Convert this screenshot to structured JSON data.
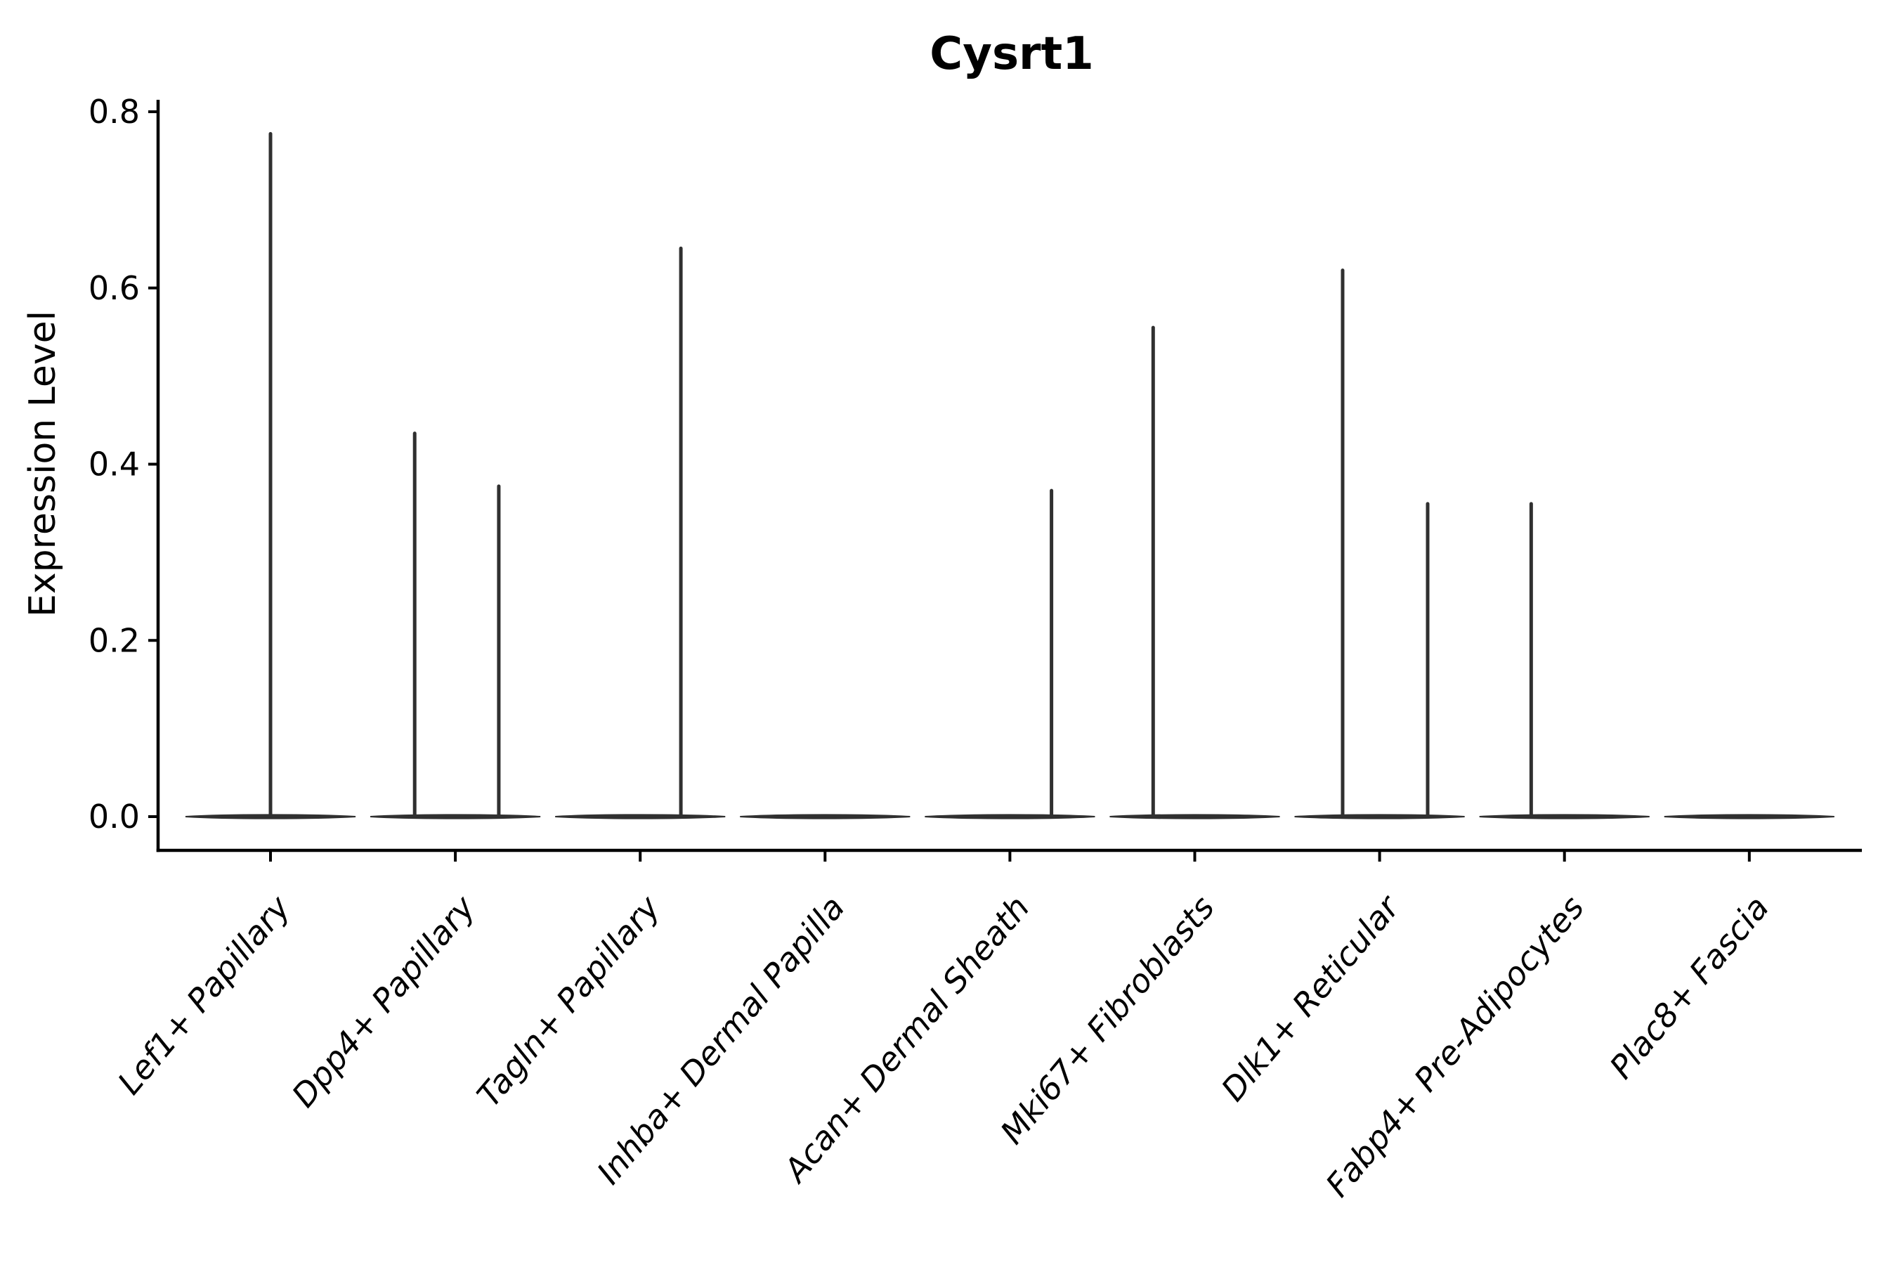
{
  "chart_data": {
    "type": "violin",
    "title": "Cysrt1",
    "ylabel": "Expression Level",
    "xlabel": "",
    "ylim": [
      0.0,
      0.8
    ],
    "yticks": [
      {
        "value": 0.0,
        "label": "0.0"
      },
      {
        "value": 0.2,
        "label": "0.2"
      },
      {
        "value": 0.4,
        "label": "0.4"
      },
      {
        "value": 0.6,
        "label": "0.6"
      },
      {
        "value": 0.8,
        "label": "0.8"
      }
    ],
    "categories": [
      "Lef1+ Papillary",
      "Dpp4+ Papillary",
      "Tagln+ Papillary",
      "Inhba+ Dermal Papilla",
      "Acan+ Dermal Sheath",
      "Mki67+ Fibroblasts",
      "Dlk1+ Reticular",
      "Fabp4+ Pre-Adipocytes",
      "Plac8+ Fascia"
    ],
    "violins": [
      {
        "category": "Lef1+ Papillary",
        "baseline_value": 0.0,
        "spikes": [
          {
            "offset_frac": 0.0,
            "max": 0.775
          }
        ]
      },
      {
        "category": "Dpp4+ Papillary",
        "baseline_value": 0.0,
        "spikes": [
          {
            "offset_frac": -0.22,
            "max": 0.435
          },
          {
            "offset_frac": 0.235,
            "max": 0.375
          }
        ]
      },
      {
        "category": "Tagln+ Papillary",
        "baseline_value": 0.0,
        "spikes": [
          {
            "offset_frac": 0.22,
            "max": 0.645
          }
        ]
      },
      {
        "category": "Inhba+ Dermal Papilla",
        "baseline_value": 0.0,
        "spikes": []
      },
      {
        "category": "Acan+ Dermal Sheath",
        "baseline_value": 0.0,
        "spikes": [
          {
            "offset_frac": 0.225,
            "max": 0.37
          }
        ]
      },
      {
        "category": "Mki67+ Fibroblasts",
        "baseline_value": 0.0,
        "spikes": [
          {
            "offset_frac": -0.225,
            "max": 0.555
          }
        ]
      },
      {
        "category": "Dlk1+ Reticular",
        "baseline_value": 0.0,
        "spikes": [
          {
            "offset_frac": -0.2,
            "max": 0.62
          },
          {
            "offset_frac": 0.26,
            "max": 0.355
          }
        ]
      },
      {
        "category": "Fabp4+ Pre-Adipocytes",
        "baseline_value": 0.0,
        "spikes": [
          {
            "offset_frac": -0.18,
            "max": 0.355
          }
        ]
      },
      {
        "category": "Plac8+ Fascia",
        "baseline_value": 0.0,
        "spikes": []
      }
    ],
    "style": {
      "violin_color": "#303030",
      "axis_color": "#000000",
      "text_color": "#000000",
      "background": "#ffffff"
    },
    "layout_hints": {
      "grid": false,
      "legend": false,
      "spines": [
        "left",
        "bottom"
      ],
      "x_tick_rotation_deg": 50,
      "x_labels_italic": true,
      "violin_halfwidth_frac": 0.46
    }
  }
}
